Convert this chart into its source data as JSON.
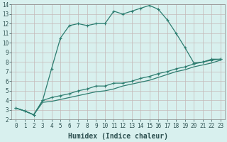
{
  "xlabel": "Humidex (Indice chaleur)",
  "ylabel": "",
  "bg_color": "#d8f0ee",
  "grid_color": "#c8d8d0",
  "line_color": "#2d7d70",
  "xlim": [
    -0.5,
    23.5
  ],
  "ylim": [
    2,
    14
  ],
  "xticks": [
    0,
    1,
    2,
    3,
    4,
    5,
    6,
    7,
    8,
    9,
    10,
    11,
    12,
    13,
    14,
    15,
    16,
    17,
    18,
    19,
    20,
    21,
    22,
    23
  ],
  "yticks": [
    2,
    3,
    4,
    5,
    6,
    7,
    8,
    9,
    10,
    11,
    12,
    13,
    14
  ],
  "line1_x": [
    0,
    1,
    2,
    3,
    4,
    5,
    6,
    7,
    8,
    9,
    10,
    11,
    12,
    13,
    14,
    15,
    16,
    17,
    18,
    19,
    20,
    21,
    22,
    23
  ],
  "line1_y": [
    3.2,
    2.9,
    2.5,
    4.0,
    7.3,
    10.5,
    11.8,
    12.0,
    11.8,
    12.0,
    12.0,
    13.3,
    13.0,
    13.3,
    13.6,
    13.9,
    13.5,
    12.4,
    11.0,
    9.5,
    7.9,
    8.0,
    8.3,
    8.3
  ],
  "line2_x": [
    0,
    1,
    2,
    3,
    4,
    5,
    6,
    7,
    8,
    9,
    10,
    11,
    12,
    13,
    14,
    15,
    16,
    17,
    18,
    19,
    20,
    21,
    22,
    23
  ],
  "line2_y": [
    3.2,
    2.9,
    2.5,
    4.0,
    4.3,
    4.5,
    4.7,
    5.0,
    5.2,
    5.5,
    5.5,
    5.8,
    5.8,
    6.0,
    6.3,
    6.5,
    6.8,
    7.0,
    7.3,
    7.5,
    7.8,
    8.0,
    8.2,
    8.3
  ],
  "line3_x": [
    0,
    1,
    2,
    3,
    4,
    5,
    6,
    7,
    8,
    9,
    10,
    11,
    12,
    13,
    14,
    15,
    16,
    17,
    18,
    19,
    20,
    21,
    22,
    23
  ],
  "line3_y": [
    3.2,
    2.9,
    2.5,
    3.8,
    3.9,
    4.1,
    4.3,
    4.5,
    4.7,
    4.9,
    5.0,
    5.2,
    5.5,
    5.7,
    5.9,
    6.1,
    6.4,
    6.7,
    7.0,
    7.2,
    7.5,
    7.7,
    7.9,
    8.2
  ],
  "marker": "+",
  "markersize": 3,
  "linewidth": 0.9,
  "tick_fontsize": 5.5,
  "xlabel_fontsize": 7
}
